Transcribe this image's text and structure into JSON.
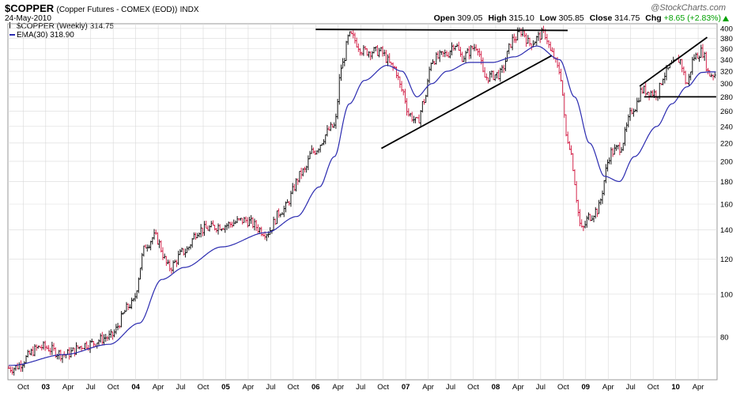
{
  "header": {
    "symbol": "$COPPER",
    "description": "(Copper Futures - COMEX (EOD))",
    "exchange": "INDX",
    "date": "24-May-2010",
    "logo": "@StockCharts.com"
  },
  "quote": {
    "open_label": "Open",
    "open": "309.05",
    "high_label": "High",
    "high": "315.10",
    "low_label": "Low",
    "low": "305.85",
    "close_label": "Close",
    "close": "314.75",
    "chg_label": "Chg",
    "chg": "+8.65 (+2.83%)"
  },
  "legend": {
    "price": "$COPPER (Weekly) 314.75",
    "ema": "EMA(30) 318.90"
  },
  "colors": {
    "up": "#000000",
    "down": "#d0103a",
    "ema": "#2b2bb0",
    "grid": "#d9d9d9",
    "chg": "#00a000"
  },
  "chart_data": {
    "type": "line",
    "title": "$COPPER (Copper Futures - COMEX (EOD))",
    "y_scale": "log",
    "ylim": [
      64,
      410
    ],
    "y_ticks": [
      80,
      100,
      120,
      140,
      160,
      180,
      200,
      220,
      240,
      260,
      280,
      300,
      320,
      340,
      360,
      380,
      400
    ],
    "x_ticks": [
      {
        "t": 2002.75,
        "label": "Oct"
      },
      {
        "t": 2003.0,
        "label": "03"
      },
      {
        "t": 2003.25,
        "label": "Apr"
      },
      {
        "t": 2003.5,
        "label": "Jul"
      },
      {
        "t": 2003.75,
        "label": "Oct"
      },
      {
        "t": 2004.0,
        "label": "04"
      },
      {
        "t": 2004.25,
        "label": "Apr"
      },
      {
        "t": 2004.5,
        "label": "Jul"
      },
      {
        "t": 2004.75,
        "label": "Oct"
      },
      {
        "t": 2005.0,
        "label": "05"
      },
      {
        "t": 2005.25,
        "label": "Apr"
      },
      {
        "t": 2005.5,
        "label": "Jul"
      },
      {
        "t": 2005.75,
        "label": "Oct"
      },
      {
        "t": 2006.0,
        "label": "06"
      },
      {
        "t": 2006.25,
        "label": "Apr"
      },
      {
        "t": 2006.5,
        "label": "Jul"
      },
      {
        "t": 2006.75,
        "label": "Oct"
      },
      {
        "t": 2007.0,
        "label": "07"
      },
      {
        "t": 2007.25,
        "label": "Apr"
      },
      {
        "t": 2007.5,
        "label": "Jul"
      },
      {
        "t": 2007.75,
        "label": "Oct"
      },
      {
        "t": 2008.0,
        "label": "08"
      },
      {
        "t": 2008.25,
        "label": "Apr"
      },
      {
        "t": 2008.5,
        "label": "Jul"
      },
      {
        "t": 2008.75,
        "label": "Oct"
      },
      {
        "t": 2009.0,
        "label": "09"
      },
      {
        "t": 2009.25,
        "label": "Apr"
      },
      {
        "t": 2009.5,
        "label": "Jul"
      },
      {
        "t": 2009.75,
        "label": "Oct"
      },
      {
        "t": 2010.0,
        "label": "10"
      },
      {
        "t": 2010.25,
        "label": "Apr"
      }
    ],
    "price_anchors": [
      [
        "2002-08",
        68
      ],
      [
        "2002-12",
        76
      ],
      [
        "2003-03",
        73
      ],
      [
        "2003-06",
        77
      ],
      [
        "2003-09",
        80
      ],
      [
        "2003-12",
        95
      ],
      [
        "2004-02",
        130
      ],
      [
        "2004-03",
        135
      ],
      [
        "2004-05",
        115
      ],
      [
        "2004-07",
        125
      ],
      [
        "2004-09",
        140
      ],
      [
        "2004-12",
        143
      ],
      [
        "2005-03",
        147
      ],
      [
        "2005-06",
        138
      ],
      [
        "2005-08",
        155
      ],
      [
        "2005-11",
        190
      ],
      [
        "2005-12",
        210
      ],
      [
        "2006-03",
        240
      ],
      [
        "2006-04",
        330
      ],
      [
        "2006-05",
        385
      ],
      [
        "2006-07",
        355
      ],
      [
        "2006-09",
        355
      ],
      [
        "2006-11",
        325
      ],
      [
        "2006-12",
        290
      ],
      [
        "2007-01",
        255
      ],
      [
        "2007-02",
        245
      ],
      [
        "2007-03",
        275
      ],
      [
        "2007-04",
        340
      ],
      [
        "2007-06",
        350
      ],
      [
        "2007-07",
        370
      ],
      [
        "2007-08",
        345
      ],
      [
        "2007-10",
        365
      ],
      [
        "2007-11",
        310
      ],
      [
        "2008-01",
        315
      ],
      [
        "2008-03",
        380
      ],
      [
        "2008-04",
        395
      ],
      [
        "2008-05",
        370
      ],
      [
        "2008-07",
        390
      ],
      [
        "2008-08",
        350
      ],
      [
        "2008-09",
        320
      ],
      [
        "2008-10",
        225
      ],
      [
        "2008-12",
        140
      ],
      [
        "2009-01",
        150
      ],
      [
        "2009-02",
        155
      ],
      [
        "2009-04",
        210
      ],
      [
        "2009-05",
        215
      ],
      [
        "2009-07",
        265
      ],
      [
        "2009-08",
        290
      ],
      [
        "2009-10",
        285
      ],
      [
        "2009-11",
        315
      ],
      [
        "2009-12",
        330
      ],
      [
        "2010-01",
        340
      ],
      [
        "2010-02",
        300
      ],
      [
        "2010-03",
        345
      ],
      [
        "2010-04",
        355
      ],
      [
        "2010-05",
        315
      ]
    ],
    "ema_anchors": [
      [
        "2002-08",
        69
      ],
      [
        "2003-03",
        73
      ],
      [
        "2003-09",
        77
      ],
      [
        "2004-01",
        86
      ],
      [
        "2004-04",
        108
      ],
      [
        "2004-07",
        115
      ],
      [
        "2004-12",
        128
      ],
      [
        "2005-06",
        138
      ],
      [
        "2005-10",
        150
      ],
      [
        "2006-01",
        175
      ],
      [
        "2006-03",
        205
      ],
      [
        "2006-05",
        270
      ],
      [
        "2006-07",
        305
      ],
      [
        "2006-10",
        330
      ],
      [
        "2006-12",
        320
      ],
      [
        "2007-02",
        280
      ],
      [
        "2007-04",
        300
      ],
      [
        "2007-06",
        320
      ],
      [
        "2007-09",
        335
      ],
      [
        "2007-12",
        335
      ],
      [
        "2008-03",
        345
      ],
      [
        "2008-06",
        365
      ],
      [
        "2008-09",
        340
      ],
      [
        "2008-11",
        280
      ],
      [
        "2009-01",
        220
      ],
      [
        "2009-03",
        185
      ],
      [
        "2009-05",
        180
      ],
      [
        "2009-07",
        205
      ],
      [
        "2009-10",
        240
      ],
      [
        "2009-12",
        270
      ],
      [
        "2010-02",
        295
      ],
      [
        "2010-04",
        318
      ],
      [
        "2010-05",
        318.9
      ]
    ],
    "trendlines": [
      {
        "t1": 2006.0,
        "v1": 398,
        "t2": 2008.8,
        "v2": 396
      },
      {
        "t1": 2006.73,
        "v1": 214,
        "t2": 2008.62,
        "v2": 347
      },
      {
        "t1": 2009.6,
        "v1": 296,
        "t2": 2010.35,
        "v2": 382
      },
      {
        "t1": 2009.65,
        "v1": 280,
        "t2": 2010.45,
        "v2": 280
      }
    ]
  }
}
